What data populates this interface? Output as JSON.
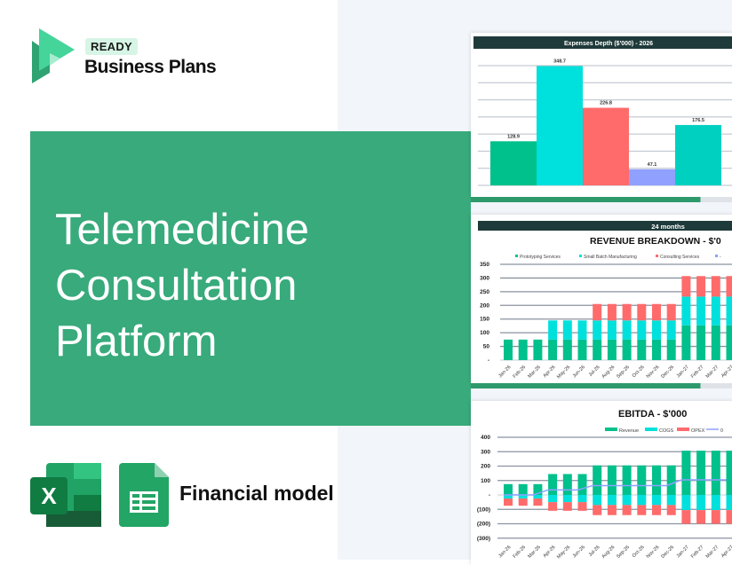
{
  "brand": {
    "badge": "READY",
    "name": "Business Plans"
  },
  "hero": {
    "title_lines": [
      "Telemedicine",
      "Consultation",
      "Platform"
    ]
  },
  "footer": {
    "label": "Financial model",
    "icons": [
      "excel-icon",
      "google-sheets-icon"
    ]
  },
  "colors": {
    "banner": "#38aa7b",
    "header_bar": "#1f3a3a",
    "green": "#00c08b",
    "cyan": "#00e0dc",
    "red": "#ff6b6b",
    "lavender": "#8fa0ff",
    "teal": "#00d0c0"
  },
  "chart_data": [
    {
      "type": "bar",
      "title": "Expenses Depth ($'000) - 2026",
      "values": [
        128.9,
        348.7,
        226.8,
        47.1,
        176.5
      ],
      "data_labels": [
        "128.9",
        "348.7",
        "226.8",
        "47.1",
        "176.5"
      ],
      "ylim": [
        0,
        350
      ],
      "grid": true
    },
    {
      "type": "bar",
      "stacked": true,
      "header": "24 months",
      "title": "REVENUE BREAKDOWN - $'0",
      "categories": [
        "Jan-26",
        "Feb-26",
        "Mar-26",
        "Apr-26",
        "May-26",
        "Jun-26",
        "Jul-26",
        "Aug-26",
        "Sep-26",
        "Oct-26",
        "Nov-26",
        "Dec-26",
        "Jan-27",
        "Feb-27",
        "Mar-27",
        "Apr-27"
      ],
      "yticks": [
        "350",
        "300",
        "250",
        "200",
        "150",
        "100",
        "50",
        "-"
      ],
      "ylim": [
        0,
        350
      ],
      "grid": true,
      "legend": "top",
      "series": [
        {
          "name": "Prototyping Services",
          "values": [
            75,
            75,
            75,
            75,
            75,
            75,
            75,
            75,
            75,
            75,
            75,
            75,
            127,
            127,
            127,
            127
          ]
        },
        {
          "name": "Small Batch Manufacturing",
          "values": [
            0,
            0,
            0,
            70,
            70,
            70,
            70,
            70,
            70,
            70,
            70,
            70,
            105,
            105,
            105,
            105
          ]
        },
        {
          "name": "Consulting Services",
          "values": [
            0,
            0,
            0,
            0,
            0,
            0,
            60,
            60,
            60,
            60,
            60,
            60,
            75,
            75,
            75,
            75
          ]
        },
        {
          "name": "-",
          "values": [
            0,
            0,
            0,
            0,
            0,
            0,
            0,
            0,
            0,
            0,
            0,
            0,
            0,
            0,
            0,
            0
          ]
        }
      ]
    },
    {
      "type": "bar",
      "stacked": true,
      "title": "EBITDA - $'000",
      "categories": [
        "Jan-26",
        "Feb-26",
        "Mar-26",
        "Apr-26",
        "May-26",
        "Jun-26",
        "Jul-26",
        "Aug-26",
        "Sep-26",
        "Oct-26",
        "Nov-26",
        "Dec-26",
        "Jan-27",
        "Feb-27",
        "Mar-27",
        "Apr-27"
      ],
      "yticks": [
        "400",
        "300",
        "200",
        "100",
        "-",
        "(100)",
        "(200)",
        "(300)"
      ],
      "ylim": [
        -300,
        400
      ],
      "grid": true,
      "legend": "top-right",
      "series": [
        {
          "name": "Revenue",
          "values": [
            75,
            75,
            75,
            145,
            145,
            145,
            205,
            205,
            205,
            205,
            205,
            205,
            307,
            307,
            307,
            307
          ]
        },
        {
          "name": "COGS",
          "values": [
            -25,
            -25,
            -25,
            -50,
            -50,
            -50,
            -70,
            -70,
            -70,
            -70,
            -70,
            -70,
            -105,
            -105,
            -105,
            -105
          ]
        },
        {
          "name": "OPEX",
          "values": [
            -50,
            -50,
            -50,
            -60,
            -60,
            -60,
            -70,
            -70,
            -70,
            -70,
            -70,
            -70,
            -95,
            -95,
            -95,
            -95
          ]
        },
        {
          "name": "0",
          "type": "line",
          "values": [
            0,
            0,
            0,
            35,
            35,
            35,
            65,
            65,
            65,
            65,
            65,
            65,
            105,
            105,
            105,
            105
          ]
        }
      ]
    }
  ]
}
